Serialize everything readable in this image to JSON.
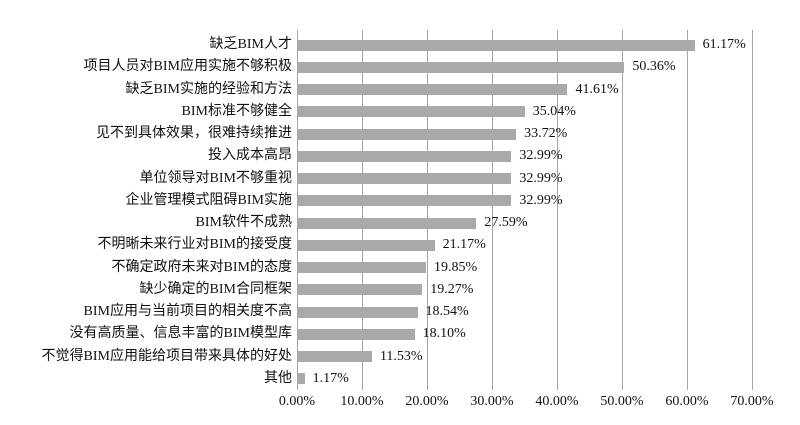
{
  "chart_data": {
    "type": "bar",
    "orientation": "horizontal",
    "title": "",
    "xlabel": "",
    "ylabel": "",
    "grid": true,
    "legend": false,
    "xlim": [
      0,
      70
    ],
    "x_ticks": [
      "0.00%",
      "10.00%",
      "20.00%",
      "30.00%",
      "40.00%",
      "50.00%",
      "60.00%",
      "70.00%"
    ],
    "categories": [
      "缺乏BIM人才",
      "项目人员对BIM应用实施不够积极",
      "缺乏BIM实施的经验和方法",
      "BIM标准不够健全",
      "见不到具体效果，很难持续推进",
      "投入成本高昂",
      "单位领导对BIM不够重视",
      "企业管理模式阻碍BIM实施",
      "BIM软件不成熟",
      "不明晰未来行业对BIM的接受度",
      "不确定政府未来对BIM的态度",
      "缺少确定的BIM合同框架",
      "BIM应用与当前项目的相关度不高",
      "没有高质量、信息丰富的BIM模型库",
      "不觉得BIM应用能给项目带来具体的好处",
      "其他"
    ],
    "values": [
      61.17,
      50.36,
      41.61,
      35.04,
      33.72,
      32.99,
      32.99,
      32.99,
      27.59,
      21.17,
      19.85,
      19.27,
      18.54,
      18.1,
      11.53,
      1.17
    ],
    "value_labels": [
      "61.17%",
      "50.36%",
      "41.61%",
      "35.04%",
      "33.72%",
      "32.99%",
      "32.99%",
      "32.99%",
      "27.59%",
      "21.17%",
      "19.85%",
      "19.27%",
      "18.54%",
      "18.10%",
      "11.53%",
      "1.17%"
    ],
    "bar_color": "#a9a9a9",
    "gridline_color": "#a6a6a6",
    "text_color": "#111111",
    "background_color": "#ffffff"
  }
}
